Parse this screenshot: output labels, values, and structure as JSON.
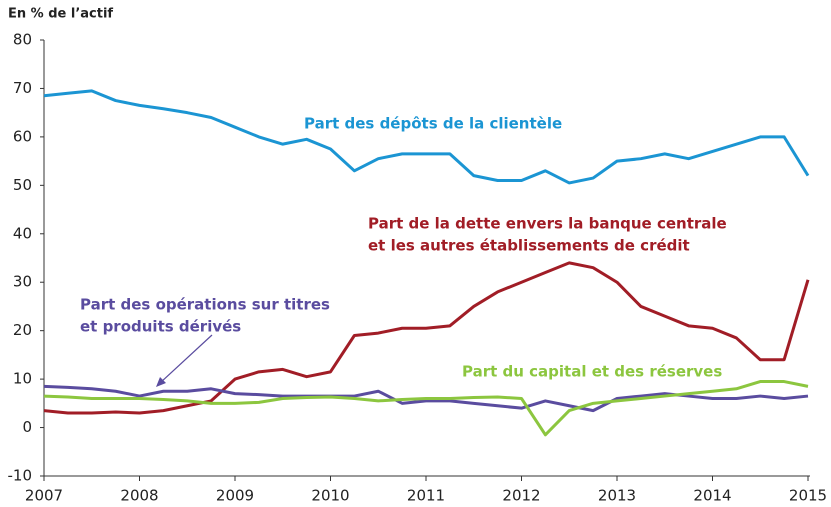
{
  "chart_data": {
    "type": "line",
    "ylabel": "En % de l’actif",
    "x": [
      2007,
      2007.25,
      2007.5,
      2007.75,
      2008,
      2008.25,
      2008.5,
      2008.75,
      2009,
      2009.25,
      2009.5,
      2009.75,
      2010,
      2010.25,
      2010.5,
      2010.75,
      2011,
      2011.25,
      2011.5,
      2011.75,
      2012,
      2012.25,
      2012.5,
      2012.75,
      2013,
      2013.25,
      2013.5,
      2013.75,
      2014,
      2014.25,
      2014.5,
      2014.75,
      2015
    ],
    "series": [
      {
        "name": "Part des dépôts de la clientèle",
        "color": "#1b95d3",
        "values": [
          68.5,
          69,
          69.5,
          67.5,
          66.5,
          65.8,
          65,
          64,
          62,
          60,
          58.5,
          59.5,
          57.5,
          53,
          55.5,
          56.5,
          56.5,
          56.5,
          52,
          51,
          51,
          53,
          50.5,
          51.5,
          55,
          55.5,
          56.5,
          55.5,
          57,
          58.5,
          60,
          60,
          52
        ]
      },
      {
        "name": "Part de la dette envers la banque centrale et les autres établissements de crédit",
        "color": "#a11d26",
        "values": [
          3.5,
          3,
          3,
          3.2,
          3,
          3.5,
          4.5,
          5.5,
          10,
          11.5,
          12,
          10.5,
          11.5,
          19,
          19.5,
          20.5,
          20.5,
          21,
          25,
          28,
          30,
          32,
          34,
          33,
          30,
          25,
          23,
          21,
          20.5,
          18.5,
          14,
          14,
          30.5
        ]
      },
      {
        "name": "Part des opérations sur titres et produits dérivés",
        "color": "#5a4c9f",
        "values": [
          8.5,
          8.3,
          8,
          7.5,
          6.5,
          7.5,
          7.5,
          8,
          7,
          6.8,
          6.5,
          6.5,
          6.5,
          6.5,
          7.5,
          5,
          5.5,
          5.5,
          5,
          4.5,
          4,
          5.5,
          4.5,
          3.5,
          6,
          6.5,
          7,
          6.5,
          6,
          6,
          6.5,
          6,
          6.5
        ]
      },
      {
        "name": "Part du capital et des réserves",
        "color": "#8cc63f",
        "values": [
          6.5,
          6.3,
          6,
          6,
          6,
          5.8,
          5.5,
          5,
          5,
          5.2,
          6,
          6.2,
          6.3,
          6,
          5.5,
          5.8,
          6,
          6,
          6.2,
          6.3,
          6,
          -1.5,
          3.5,
          5,
          5.5,
          6,
          6.5,
          7,
          7.5,
          8,
          9.5,
          9.5,
          8.5
        ]
      }
    ],
    "annotations": [
      [
        "Part des dépôts de la clientèle"
      ],
      [
        "Part de la dette envers la banque centrale",
        "et les autres établissements de crédit"
      ],
      [
        "Part des opérations sur titres",
        "et produits dérivés"
      ],
      [
        "Part du capital et des réserves"
      ]
    ],
    "xlim": [
      2007,
      2015
    ],
    "xticks": [
      2007,
      2008,
      2009,
      2010,
      2011,
      2012,
      2013,
      2014,
      2015
    ],
    "ylim": [
      -10,
      80
    ],
    "yticks": [
      -10,
      0,
      10,
      20,
      30,
      40,
      50,
      60,
      70,
      80
    ],
    "grid": false
  }
}
